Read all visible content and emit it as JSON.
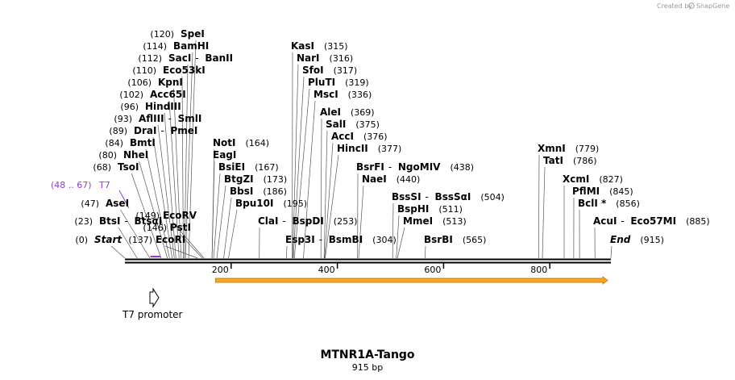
{
  "credit": {
    "text": "Created by",
    "brand": "SnapGene"
  },
  "sequence": {
    "name": "MTNR1A-Tango",
    "length_label": "915 bp",
    "length": 915
  },
  "colors": {
    "primer": "#8d3fd0",
    "orf_fill": "#f6a623",
    "orf_stroke": "#c98a16"
  },
  "ruler": {
    "ticks": [
      200,
      400,
      600,
      800
    ]
  },
  "sites": [
    {
      "pos": "(0)",
      "bp": 0,
      "names": [
        "Start"
      ],
      "italic": true
    },
    {
      "pos": "(23)",
      "bp": 23,
      "names": [
        "BtsI",
        "BtsαI"
      ]
    },
    {
      "pos": "(47)",
      "bp": 47,
      "names": [
        "AseI"
      ]
    },
    {
      "pos": "(68)",
      "bp": 68,
      "names": [
        "TsoI"
      ]
    },
    {
      "pos": "(80)",
      "bp": 80,
      "names": [
        "NheI"
      ]
    },
    {
      "pos": "(84)",
      "bp": 84,
      "names": [
        "BmtI"
      ]
    },
    {
      "pos": "(89)",
      "bp": 89,
      "names": [
        "DraI",
        "PmeI"
      ]
    },
    {
      "pos": "(93)",
      "bp": 93,
      "names": [
        "AflIII",
        "SmlI"
      ]
    },
    {
      "pos": "(96)",
      "bp": 96,
      "names": [
        "HindIII"
      ]
    },
    {
      "pos": "(102)",
      "bp": 102,
      "names": [
        "Acc65I"
      ]
    },
    {
      "pos": "(106)",
      "bp": 106,
      "names": [
        "KpnI"
      ]
    },
    {
      "pos": "(110)",
      "bp": 110,
      "names": [
        "Eco53kI"
      ]
    },
    {
      "pos": "(112)",
      "bp": 112,
      "names": [
        "SacI",
        "BanII"
      ]
    },
    {
      "pos": "(114)",
      "bp": 114,
      "names": [
        "BamHI"
      ]
    },
    {
      "pos": "(120)",
      "bp": 120,
      "names": [
        "SpeI"
      ]
    },
    {
      "pos": "(137)",
      "bp": 137,
      "names": [
        "EcoRI"
      ],
      "pos_left": true
    },
    {
      "pos": "(146)",
      "bp": 146,
      "names": [
        "PstI"
      ],
      "pos_left": true
    },
    {
      "pos": "(149)",
      "bp": 149,
      "names": [
        "EcoRV"
      ],
      "pos_left": true
    },
    {
      "pos": "(164)",
      "bp": 164,
      "names": [
        "NotI"
      ]
    },
    {
      "pos": "",
      "bp": 164,
      "names": [
        "EagI"
      ]
    },
    {
      "pos": "(167)",
      "bp": 167,
      "names": [
        "BsiEI"
      ]
    },
    {
      "pos": "(173)",
      "bp": 173,
      "names": [
        "BtgZI"
      ]
    },
    {
      "pos": "(186)",
      "bp": 186,
      "names": [
        "BbsI"
      ]
    },
    {
      "pos": "(195)",
      "bp": 195,
      "names": [
        "Bpu10I"
      ]
    },
    {
      "pos": "(253)",
      "bp": 253,
      "names": [
        "ClaI",
        "BspDI"
      ]
    },
    {
      "pos": "(304)",
      "bp": 304,
      "names": [
        "Esp3I",
        "BsmBI"
      ]
    },
    {
      "pos": "(315)",
      "bp": 315,
      "names": [
        "KasI"
      ]
    },
    {
      "pos": "(316)",
      "bp": 316,
      "names": [
        "NarI"
      ]
    },
    {
      "pos": "(317)",
      "bp": 317,
      "names": [
        "SfoI"
      ]
    },
    {
      "pos": "(319)",
      "bp": 319,
      "names": [
        "PluTI"
      ]
    },
    {
      "pos": "(336)",
      "bp": 336,
      "names": [
        "MscI"
      ]
    },
    {
      "pos": "(369)",
      "bp": 369,
      "names": [
        "AleI"
      ]
    },
    {
      "pos": "(375)",
      "bp": 375,
      "names": [
        "SalI"
      ]
    },
    {
      "pos": "(376)",
      "bp": 376,
      "names": [
        "AccI"
      ]
    },
    {
      "pos": "(377)",
      "bp": 377,
      "names": [
        "HincII"
      ]
    },
    {
      "pos": "(438)",
      "bp": 438,
      "names": [
        "BsrFI",
        "NgoMIV"
      ]
    },
    {
      "pos": "(440)",
      "bp": 440,
      "names": [
        "NaeI"
      ]
    },
    {
      "pos": "(504)",
      "bp": 504,
      "names": [
        "BssSI",
        "BssSαI"
      ]
    },
    {
      "pos": "(511)",
      "bp": 511,
      "names": [
        "BspHI"
      ]
    },
    {
      "pos": "(513)",
      "bp": 513,
      "names": [
        "MmeI"
      ]
    },
    {
      "pos": "(565)",
      "bp": 565,
      "names": [
        "BsrBI"
      ]
    },
    {
      "pos": "(779)",
      "bp": 779,
      "names": [
        "XmnI"
      ]
    },
    {
      "pos": "(786)",
      "bp": 786,
      "names": [
        "TatI"
      ]
    },
    {
      "pos": "(827)",
      "bp": 827,
      "names": [
        "XcmI"
      ]
    },
    {
      "pos": "(845)",
      "bp": 845,
      "names": [
        "PflMI"
      ]
    },
    {
      "pos": "(856)",
      "bp": 856,
      "names": [
        "BclI *"
      ]
    },
    {
      "pos": "(885)",
      "bp": 885,
      "names": [
        "AcuI",
        "Eco57MI"
      ]
    },
    {
      "pos": "(915)",
      "bp": 915,
      "names": [
        "End"
      ],
      "italic": true
    }
  ],
  "primer": {
    "pos": "(48 .. 67)",
    "name": "T7",
    "start": 48,
    "end": 67
  },
  "features": [
    {
      "name": "T7 promoter",
      "type": "promoter",
      "start": 21,
      "end": 39
    },
    {
      "name": "",
      "type": "orf",
      "start": 175,
      "end": 915
    }
  ]
}
